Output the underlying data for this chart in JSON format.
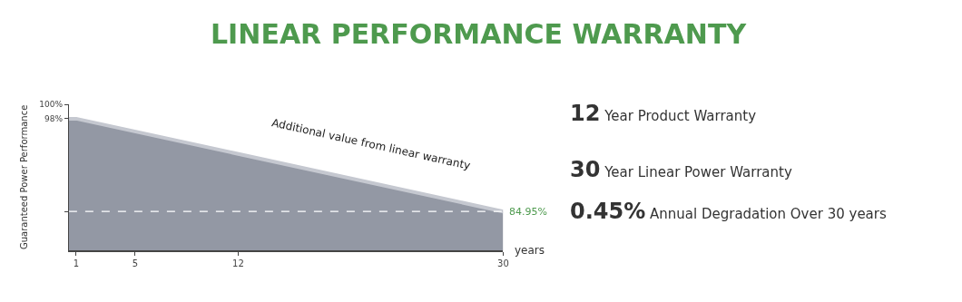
{
  "chart_data": {
    "type": "area",
    "title": "LINEAR PERFORMANCE WARRANTY",
    "xlabel": "years",
    "ylabel": "Guaranteed Power Performance",
    "x": [
      0.5,
      1,
      30
    ],
    "series": [
      {
        "color": "#9398a4",
        "values": [
          98,
          98,
          84.95
        ]
      }
    ],
    "xlim": [
      0.5,
      30
    ],
    "xticks": [
      1,
      5,
      12,
      30
    ],
    "ylim": [
      79.5,
      100
    ],
    "yticks": [
      {
        "value": 100,
        "label": "100%"
      },
      {
        "value": 98,
        "label": "98%"
      },
      {
        "value": 84.95,
        "label": null
      }
    ],
    "ref_lines": [
      {
        "axis": "y",
        "value": 84.95,
        "label": "84.95%",
        "color": "#ffffff",
        "line_style": "dashed"
      }
    ],
    "annotations": [
      "Additional value from linear warranty",
      "12 Year Product Warranty",
      "30 Year Linear Power Warranty",
      "0.45% Annual Degradation Over 30 years"
    ]
  }
}
